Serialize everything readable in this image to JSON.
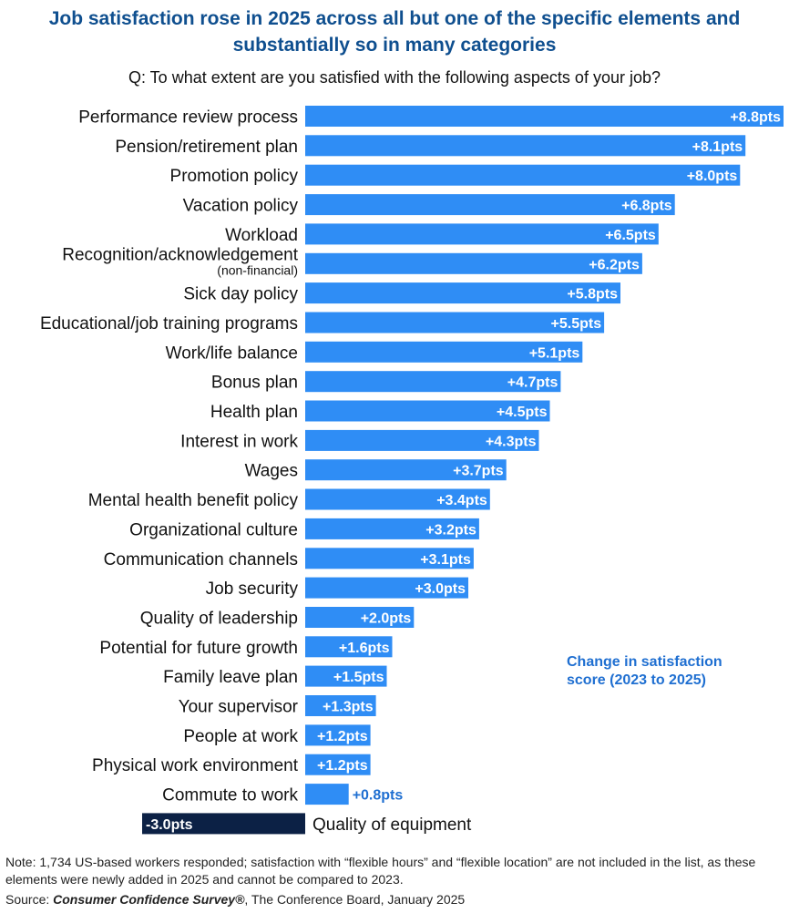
{
  "title_line1": "Job satisfaction rose in 2025 across all but one of the specific elements and",
  "title_line2": "substantially so in many categories",
  "question": "Q: To what extent are you satisfied with the following aspects of your job?",
  "legend_label_line1": "Change in satisfaction",
  "legend_label_line2": "score (2023 to 2025)",
  "note": "Note: 1,734 US-based workers responded; satisfaction with “flexible hours” and “flexible location” are not included in the list, as these elements were newly added in 2025 and cannot be compared to 2023.",
  "source_prefix": "Source: ",
  "source_title": "Consumer Confidence Survey®",
  "source_suffix": ", The Conference Board, January 2025",
  "colors": {
    "positive": "#2f8df5",
    "negative": "#0c2145",
    "accent": "#1f6fd1",
    "title": "#0f4f8f"
  },
  "chart_data": {
    "type": "bar",
    "orientation": "horizontal",
    "unit": "pts",
    "categories": [
      "Performance review process",
      "Pension/retirement plan",
      "Promotion policy",
      "Vacation policy",
      "Workload",
      "Recognition/acknowledgement",
      "Sick day policy",
      "Educational/job training programs",
      "Work/life balance",
      "Bonus plan",
      "Health plan",
      "Interest in work",
      "Wages",
      "Mental health benefit policy",
      "Organizational culture",
      "Communication channels",
      "Job security",
      "Quality of leadership",
      "Potential for future growth",
      "Family leave plan",
      "Your supervisor",
      "People at work",
      "Physical work environment",
      "Commute to work",
      "Quality of equipment"
    ],
    "sublabels": {
      "Recognition/acknowledgement": "(non-financial)"
    },
    "values": [
      8.8,
      8.1,
      8.0,
      6.8,
      6.5,
      6.2,
      5.8,
      5.5,
      5.1,
      4.7,
      4.5,
      4.3,
      3.7,
      3.4,
      3.2,
      3.1,
      3.0,
      2.0,
      1.6,
      1.5,
      1.3,
      1.2,
      1.2,
      0.8,
      -3.0
    ],
    "value_labels": [
      "+8.8pts",
      "+8.1pts",
      "+8.0pts",
      "+6.8pts",
      "+6.5pts",
      "+6.2pts",
      "+5.8pts",
      "+5.5pts",
      "+5.1pts",
      "+4.7pts",
      "+4.5pts",
      "+4.3pts",
      "+3.7pts",
      "+3.4pts",
      "+3.2pts",
      "+3.1pts",
      "+3.0pts",
      "+2.0pts",
      "+1.6pts",
      "+1.5pts",
      "+1.3pts",
      "+1.2pts",
      "+1.2pts",
      "+0.8pts",
      "-3.0pts"
    ],
    "xlim": [
      -3.0,
      8.8
    ],
    "grid": false,
    "legend": "none"
  }
}
